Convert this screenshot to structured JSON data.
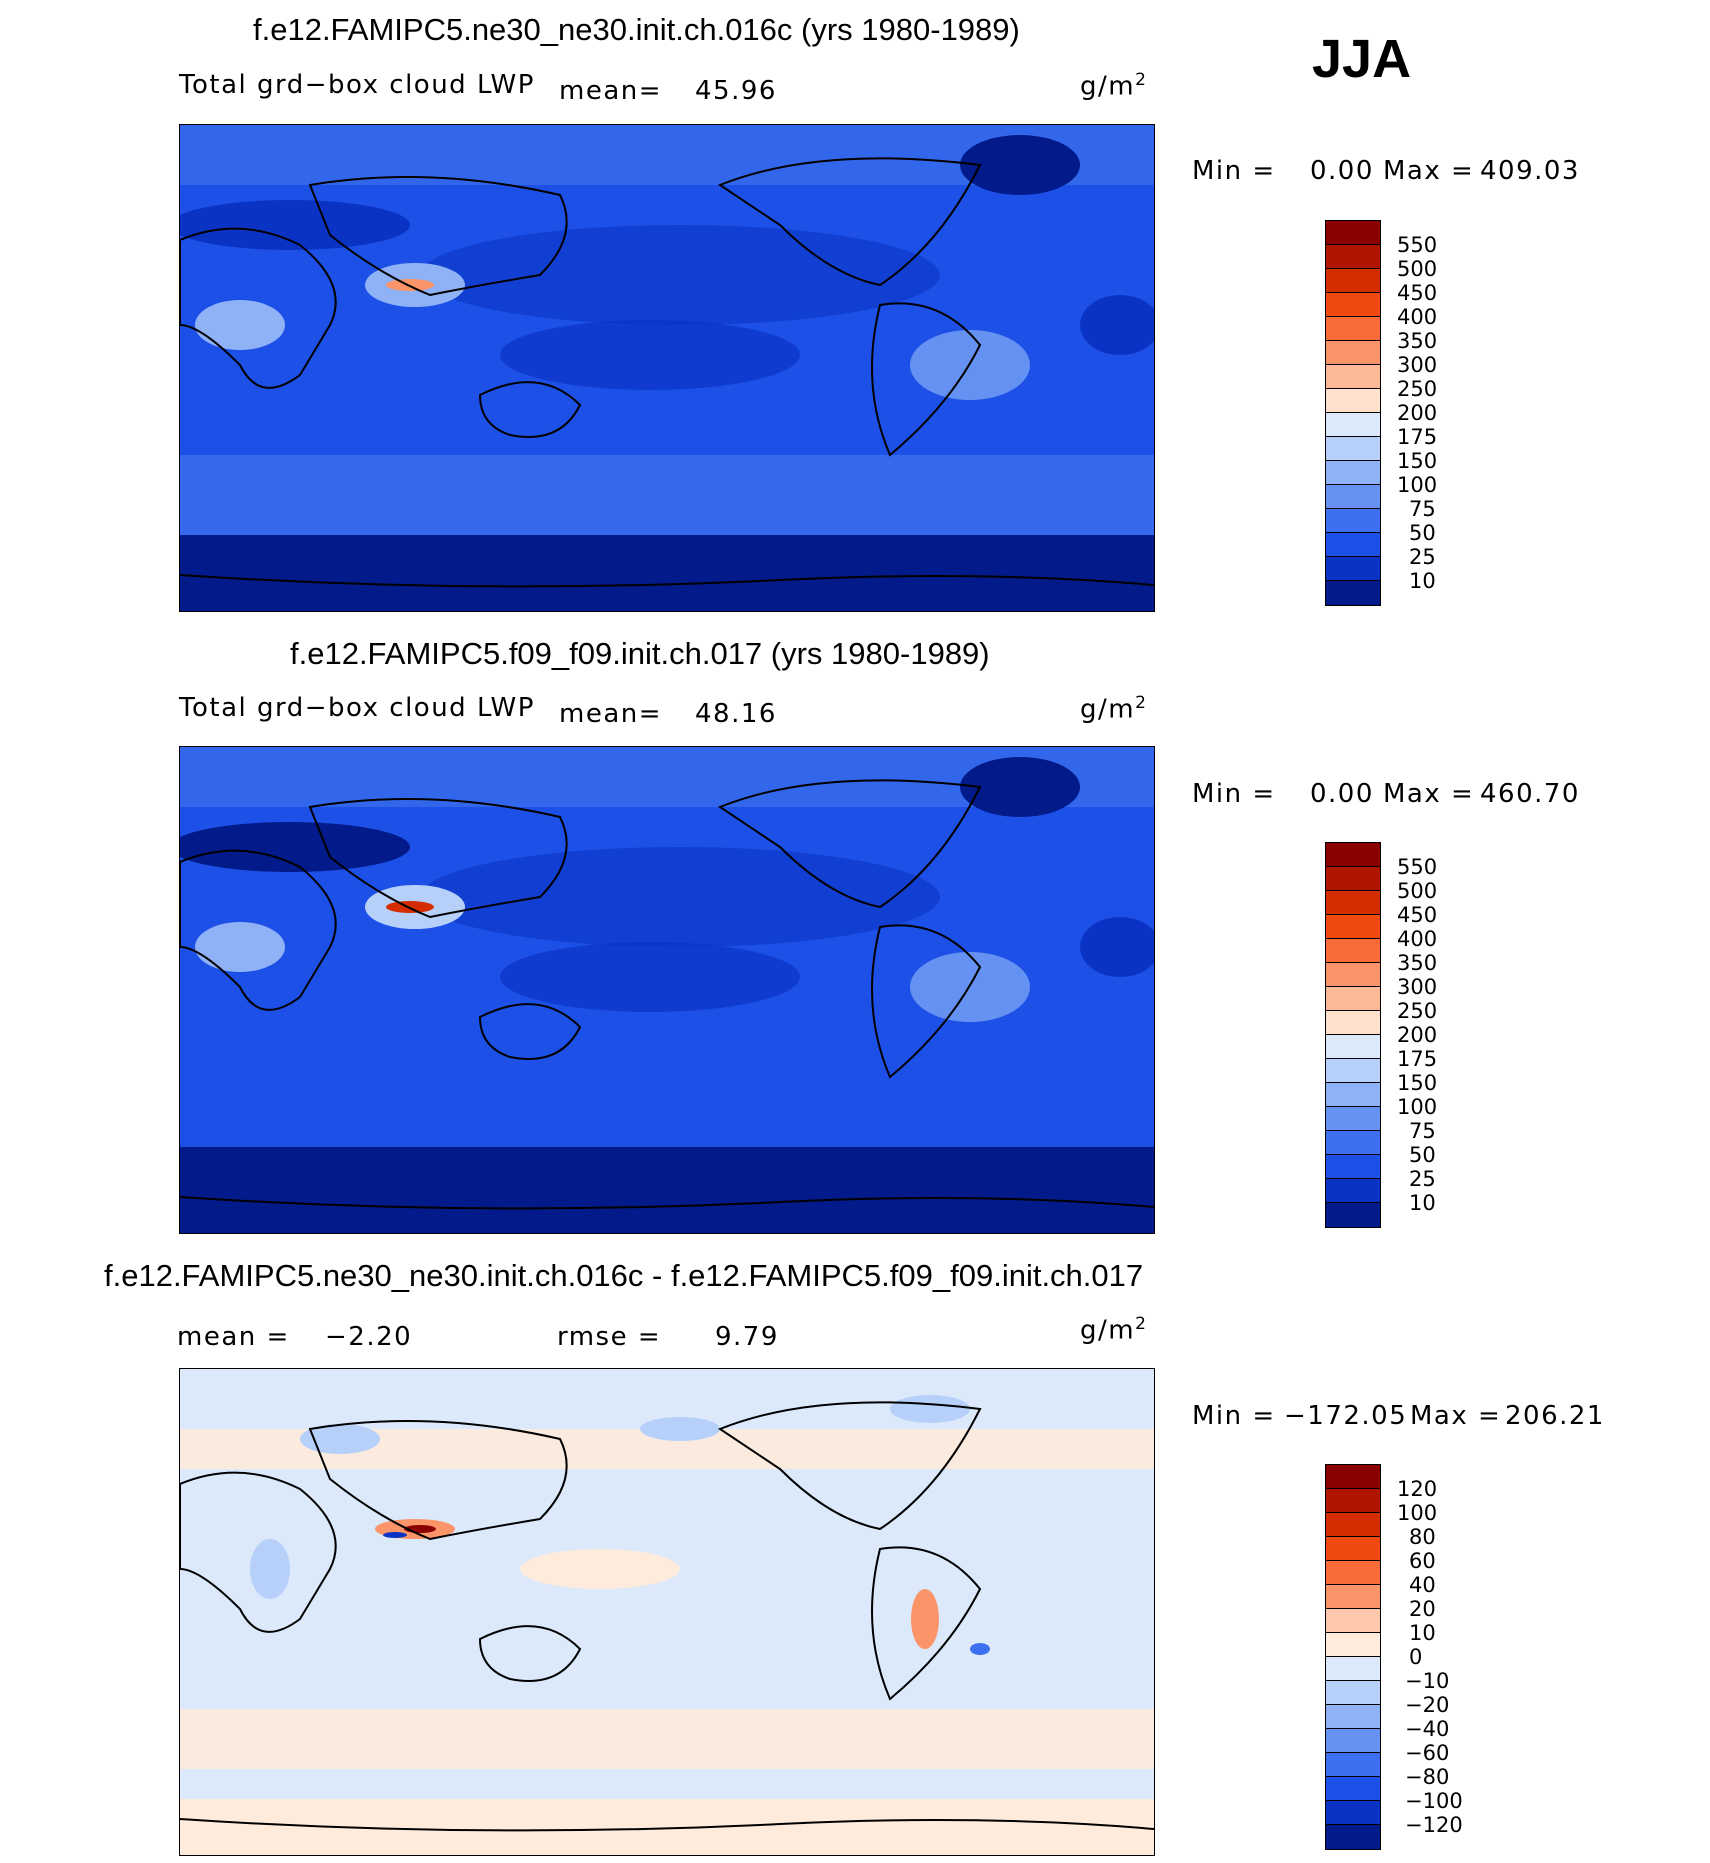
{
  "season": "JJA",
  "panels": [
    {
      "title": "f.e12.FAMIPC5.ne30_ne30.init.ch.016c (yrs 1980-1989)",
      "variable": "Total grd−box cloud LWP",
      "stat1_label": "mean=",
      "stat1_value": "45.96",
      "units": "g/m",
      "units_exp": "2",
      "min_label": "Min =",
      "min_value": "0.00",
      "max_label": "Max =",
      "max_value": "409.03",
      "colorbar": {
        "labels": [
          "550",
          "500",
          "450",
          "400",
          "350",
          "300",
          "250",
          "200",
          "175",
          "150",
          "100",
          "75",
          "50",
          "25",
          "10"
        ],
        "colors": [
          "#8b0000",
          "#b01500",
          "#d42e00",
          "#f04a10",
          "#f86a38",
          "#fb9468",
          "#fdb898",
          "#fee0cc",
          "#dbe9fb",
          "#b6d0fa",
          "#8fb2f6",
          "#6592f2",
          "#3c70ee",
          "#1c50e6",
          "#0a33c4",
          "#021a8a"
        ]
      }
    },
    {
      "title": "f.e12.FAMIPC5.f09_f09.init.ch.017 (yrs 1980-1989)",
      "variable": "Total grd−box cloud LWP",
      "stat1_label": "mean=",
      "stat1_value": "48.16",
      "units": "g/m",
      "units_exp": "2",
      "min_label": "Min =",
      "min_value": "0.00",
      "max_label": "Max =",
      "max_value": "460.70",
      "colorbar": {
        "labels": [
          "550",
          "500",
          "450",
          "400",
          "350",
          "300",
          "250",
          "200",
          "175",
          "150",
          "100",
          "75",
          "50",
          "25",
          "10"
        ],
        "colors": [
          "#8b0000",
          "#b01500",
          "#d42e00",
          "#f04a10",
          "#f86a38",
          "#fb9468",
          "#fdb898",
          "#fee0cc",
          "#dbe9fb",
          "#b6d0fa",
          "#8fb2f6",
          "#6592f2",
          "#3c70ee",
          "#1c50e6",
          "#0a33c4",
          "#021a8a"
        ]
      }
    },
    {
      "title": "f.e12.FAMIPC5.ne30_ne30.init.ch.016c - f.e12.FAMIPC5.f09_f09.init.ch.017",
      "stat1_label": "mean =",
      "stat1_value": "−2.20",
      "stat2_label": "rmse =",
      "stat2_value": "9.79",
      "units": "g/m",
      "units_exp": "2",
      "min_label": "Min =",
      "min_value": "−172.05",
      "max_label": "Max =",
      "max_value": "206.21",
      "colorbar": {
        "labels": [
          "120",
          "100",
          "80",
          "60",
          "40",
          "20",
          "10",
          "0",
          "−10",
          "−20",
          "−40",
          "−60",
          "−80",
          "−100",
          "−120"
        ],
        "colors": [
          "#8b0000",
          "#b01500",
          "#d42e00",
          "#f04a10",
          "#f86a38",
          "#fb9468",
          "#fdc8ac",
          "#feebdc",
          "#dbe9fb",
          "#b6d0fa",
          "#8fb2f6",
          "#6592f2",
          "#3c70ee",
          "#1c50e6",
          "#0a33c4",
          "#021a8a"
        ]
      }
    }
  ]
}
